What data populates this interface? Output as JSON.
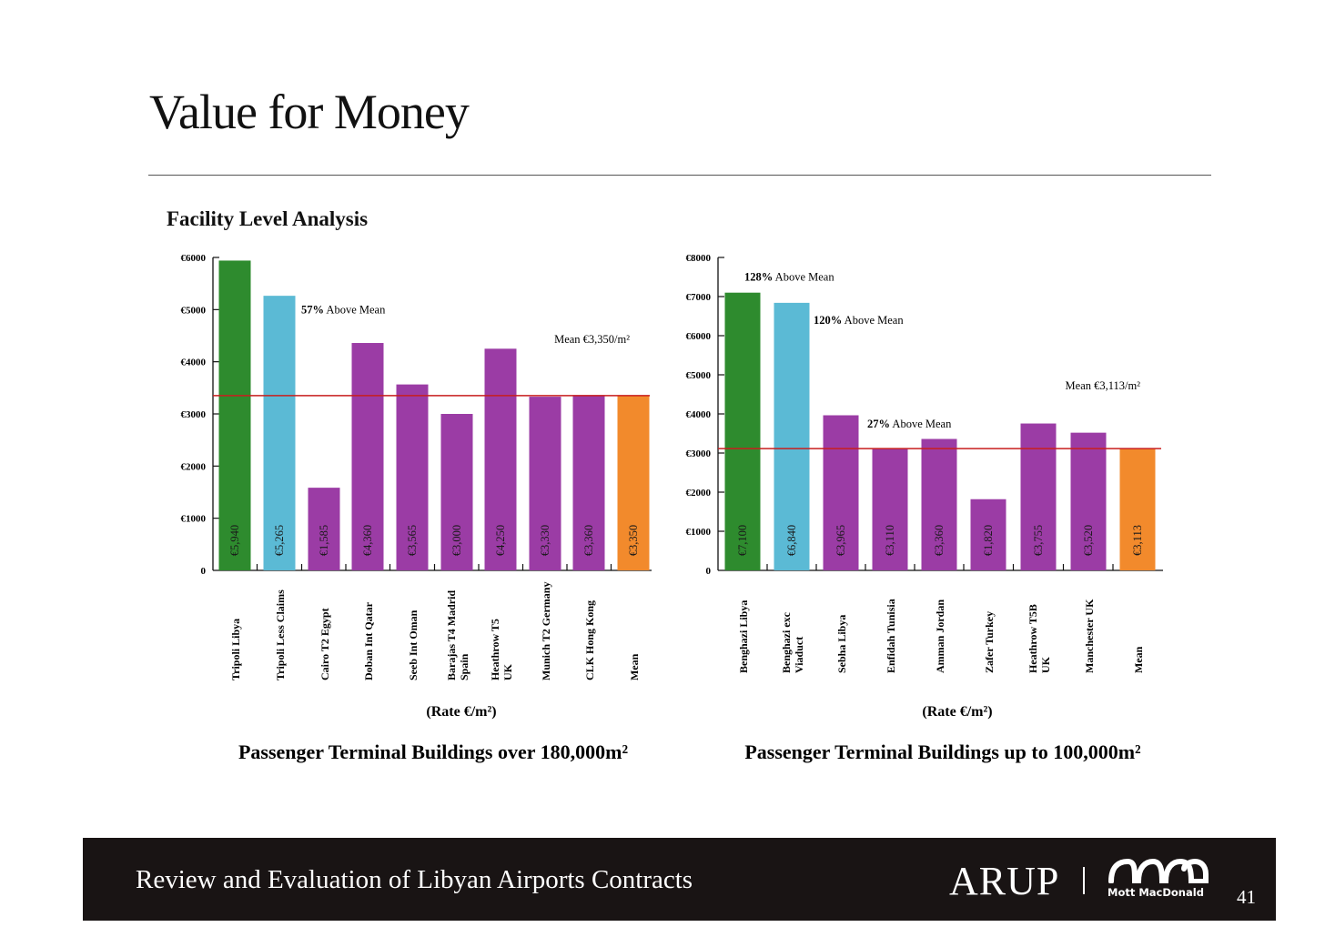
{
  "page": {
    "title": "Value for Money",
    "section_title": "Facility Level Analysis"
  },
  "footer": {
    "text": "Review and Evaluation of Libyan Airports Contracts",
    "brand": "ARUP",
    "logo_text": "Mott MacDonald",
    "page_number": "41"
  },
  "colors": {
    "green": "#2e8b2e",
    "blue": "#5bbad5",
    "purple": "#9b3ca5",
    "orange": "#f28a2c",
    "mean_line": "#c81e1e"
  },
  "chart_data": [
    {
      "type": "bar",
      "title": "Passenger Terminal Buildings over 180,000m²",
      "xlabel": "",
      "ylabel": "(Rate €/m²)",
      "ylim": [
        0,
        6000
      ],
      "yticks": [
        0,
        1000,
        2000,
        3000,
        4000,
        5000,
        6000
      ],
      "ytick_labels": [
        "0",
        "€1000",
        "€2000",
        "€3000",
        "€4000",
        "€5000",
        "€6000"
      ],
      "categories": [
        [
          "Tripoli Libya"
        ],
        [
          "Tripoli Less Claims"
        ],
        [
          "Cairo T2 Egypt"
        ],
        [
          "Doban Int Qatar"
        ],
        [
          "Seeb Int Oman"
        ],
        [
          "Barajas T4 Madrid",
          "Spain"
        ],
        [
          "Heathrow T5",
          "UK"
        ],
        [
          "Munich T2 Germany"
        ],
        [
          "CLK Hong Kong"
        ],
        [
          "Mean"
        ]
      ],
      "values": [
        5940,
        5265,
        1585,
        4360,
        3565,
        3000,
        4250,
        3330,
        3360,
        3350
      ],
      "value_labels": [
        "€5,940",
        "€5,265",
        "€1,585",
        "€4,360",
        "€3,565",
        "€3,000",
        "€4,250",
        "€3,330",
        "€3,360",
        "€3,350"
      ],
      "bar_colors": [
        "green",
        "blue",
        "purple",
        "purple",
        "purple",
        "purple",
        "purple",
        "purple",
        "purple",
        "orange"
      ],
      "mean": {
        "value": 3350,
        "label": "Mean €3,350/m²"
      },
      "annotations": [
        {
          "bold": "57%",
          "text": " Above Mean",
          "bar": 1,
          "y": 5000
        }
      ],
      "grid": false
    },
    {
      "type": "bar",
      "title": "Passenger Terminal Buildings up to 100,000m²",
      "xlabel": "",
      "ylabel": "(Rate €/m²)",
      "ylim": [
        0,
        8000
      ],
      "yticks": [
        0,
        1000,
        2000,
        3000,
        4000,
        5000,
        6000,
        7000,
        8000
      ],
      "ytick_labels": [
        "0",
        "€1000",
        "€2000",
        "€3000",
        "€4000",
        "€5000",
        "€6000",
        "€7000",
        "€8000"
      ],
      "categories": [
        [
          "Benghazi Libya"
        ],
        [
          "Benghazi exc",
          "Viaduct"
        ],
        [
          "Sebha Libya"
        ],
        [
          "Enfidah Tunisia"
        ],
        [
          "Amman Jordan"
        ],
        [
          "Zafer Turkey"
        ],
        [
          "Heathrow T5B",
          "UK"
        ],
        [
          "Manchester UK"
        ],
        [
          "Mean"
        ]
      ],
      "values": [
        7100,
        6840,
        3965,
        3110,
        3360,
        1820,
        3755,
        3520,
        3113
      ],
      "value_labels": [
        "€7,100",
        "€6,840",
        "€3,965",
        "€3,110",
        "€3,360",
        "€1,820",
        "€3,755",
        "€3,520",
        "€3,113"
      ],
      "bar_colors": [
        "green",
        "blue",
        "purple",
        "purple",
        "purple",
        "purple",
        "purple",
        "purple",
        "orange"
      ],
      "mean": {
        "value": 3113,
        "label": "Mean €3,113/m²"
      },
      "annotations": [
        {
          "bold": "128%",
          "text": " Above Mean",
          "bar": 0,
          "y": 7500
        },
        {
          "bold": "120%",
          "text": " Above Mean",
          "bar": 1,
          "y": 6400
        },
        {
          "bold": "27%",
          "text": " Above Mean",
          "bar": 2,
          "y": 3750
        }
      ],
      "grid": false
    }
  ]
}
